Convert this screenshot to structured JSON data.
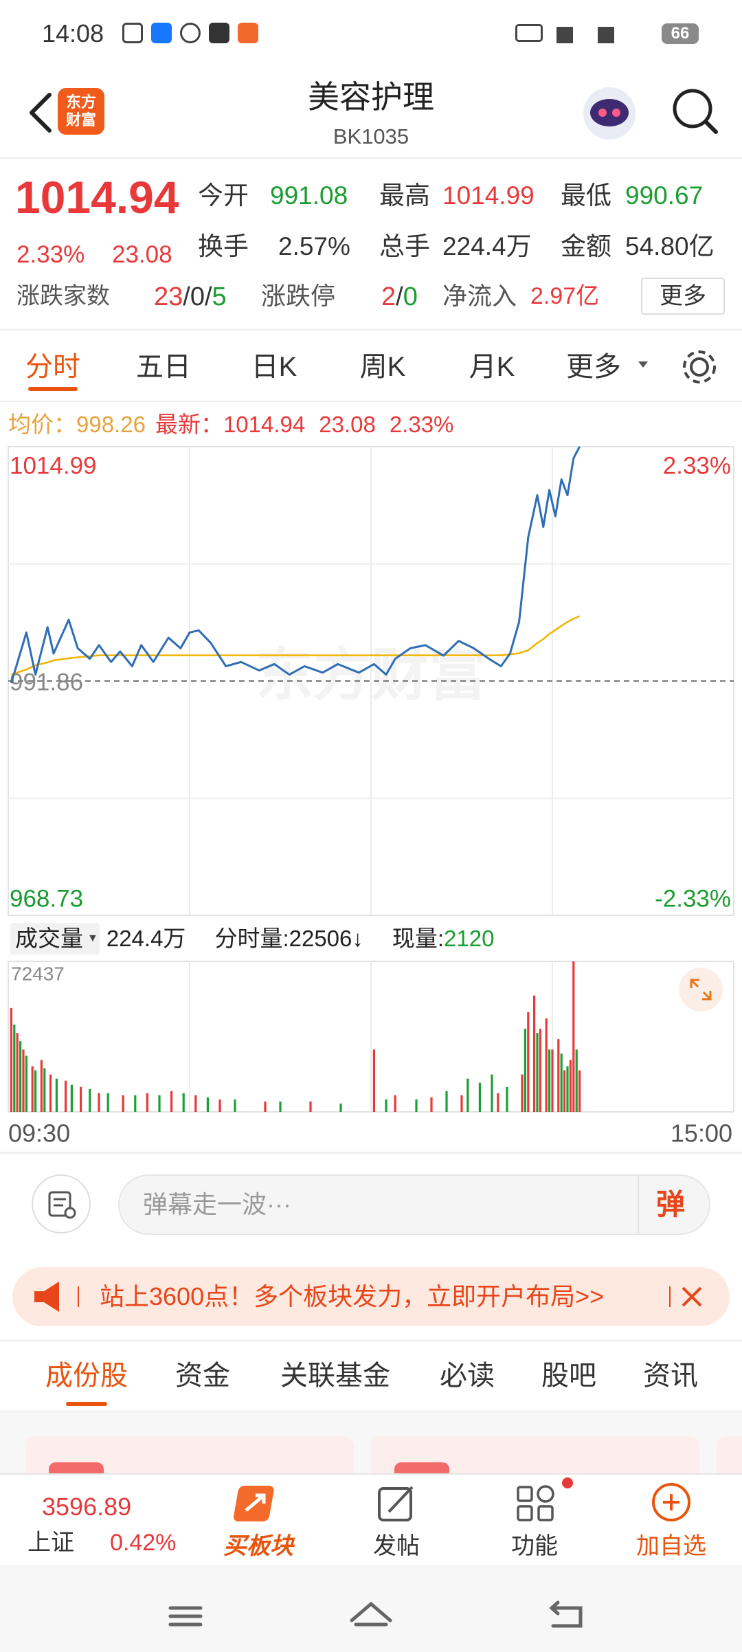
{
  "status_bar": {
    "time": "14:08",
    "battery": "66"
  },
  "header": {
    "logo": [
      "东方",
      "财富"
    ],
    "title": "美容护理",
    "code": "BK1035"
  },
  "quote": {
    "price": "1014.94",
    "change_pct": "2.33%",
    "change": "23.08",
    "stats": [
      [
        {
          "label": "今开",
          "value": "991.08"
        },
        {
          "label": "最高",
          "value": "1014.99"
        },
        {
          "label": "最低",
          "value": "990.67"
        }
      ],
      [
        {
          "label": "换手",
          "value": "2.57%"
        },
        {
          "label": "总手",
          "value": "224.4万"
        },
        {
          "label": "金额",
          "value": "54.80亿"
        }
      ]
    ],
    "advance_decline": {
      "label": "涨跌家数",
      "parts": [
        "23",
        "/",
        "0",
        "/",
        "5"
      ]
    },
    "limit": {
      "label": "涨跌停",
      "parts": [
        "2",
        "/",
        "0"
      ]
    },
    "net_inflow": {
      "label": "净流入",
      "value": "2.97亿"
    },
    "more": "更多"
  },
  "tabs": {
    "items": [
      "分时",
      "五日",
      "日K",
      "周K",
      "月K",
      "更多"
    ],
    "active": 0
  },
  "info": {
    "avg_label": "均价：",
    "avg": "998.26",
    "latest_label": "最新：",
    "latest": "1014.94",
    "change": "23.08",
    "change_pct": "2.33%"
  },
  "watermark": "东方财富",
  "volume_header": {
    "label": "成交量",
    "total": "224.4万",
    "minute_label": "分时量:",
    "minute_value": "22506",
    "arrow": "↓",
    "current_label": "现量:",
    "current_value": "2120"
  },
  "chart_data": [
    {
      "type": "line",
      "xlim": [
        0,
        240
      ],
      "ylim": [
        968.73,
        1014.99
      ],
      "yticks": [
        1014.99,
        991.86,
        968.73
      ],
      "y2lim": [
        -2.33,
        2.33
      ],
      "y2ticks": [
        {
          "value": 2.33,
          "label": "2.33%"
        },
        {
          "value": -2.33,
          "label": "-2.33%"
        }
      ],
      "x": [
        1,
        6,
        9,
        13,
        15,
        20,
        23,
        27,
        30,
        34,
        37,
        41,
        44,
        48,
        53,
        57,
        60,
        63,
        67,
        72,
        77,
        83,
        88,
        93,
        98,
        104,
        109,
        116,
        121,
        125,
        128,
        133,
        138,
        144,
        149,
        154,
        159,
        163,
        166,
        169,
        172,
        175,
        177,
        179,
        181,
        183,
        185,
        187,
        189
      ],
      "series": [
        {
          "color": "#2f6db5",
          "values": [
            991.65,
            996.65,
            992.49,
            997.17,
            994.57,
            997.9,
            995.09,
            994.05,
            995.4,
            993.74,
            994.78,
            993.32,
            995.4,
            993.74,
            996.13,
            995.09,
            996.65,
            996.86,
            995.61,
            993.32,
            993.74,
            992.9,
            993.53,
            992.49,
            993.32,
            992.69,
            993.53,
            992.69,
            993.53,
            992.49,
            994.05,
            995.09,
            995.4,
            994.36,
            995.82,
            995.09,
            994.05,
            993.32,
            994.57,
            997.7,
            1006.03,
            1010.2,
            1007.07,
            1010.72,
            1008.12,
            1011.76,
            1010.2,
            1013.85,
            1014.99
          ]
        },
        {
          "color": "#f0b400",
          "values": [
            992.5,
            993.0,
            993.4,
            993.7,
            993.9,
            994.1,
            994.2,
            994.3,
            994.4,
            994.4,
            994.4,
            994.4,
            994.4,
            994.4,
            994.4,
            994.4,
            994.4,
            994.4,
            994.4,
            994.4,
            994.4,
            994.4,
            994.4,
            994.4,
            994.4,
            994.4,
            994.4,
            994.4,
            994.4,
            994.4,
            994.4,
            994.4,
            994.4,
            994.4,
            994.4,
            994.4,
            994.4,
            994.4,
            994.5,
            994.6,
            994.9,
            995.6,
            996.0,
            996.5,
            996.9,
            997.3,
            997.7,
            998.0,
            998.26
          ]
        }
      ]
    },
    {
      "type": "bar",
      "xlim": [
        0,
        240
      ],
      "ylim": [
        0,
        72437
      ],
      "yticks": [
        72437
      ],
      "xticks": [
        {
          "value": 0,
          "label": "09:30"
        },
        {
          "value": 240,
          "label": "15:00"
        }
      ],
      "series": [
        {
          "color": "#e8393a",
          "x": [
            1,
            3,
            5,
            8,
            11,
            14,
            19,
            24,
            30,
            38,
            46,
            54,
            62,
            70,
            85,
            100,
            121,
            128,
            140,
            150,
            162,
            170,
            172,
            174,
            176,
            178,
            180,
            182,
            184,
            186,
            187,
            189
          ],
          "values": [
            50000,
            38000,
            30000,
            22000,
            25000,
            18000,
            15000,
            12000,
            9000,
            8000,
            9000,
            10000,
            8000,
            6000,
            5000,
            5000,
            30000,
            8000,
            7000,
            8000,
            9000,
            18000,
            48000,
            56000,
            40000,
            45000,
            30000,
            35000,
            20000,
            25000,
            72437,
            20000
          ]
        },
        {
          "color": "#1aa035",
          "x": [
            2,
            4,
            6,
            9,
            12,
            16,
            21,
            27,
            33,
            42,
            50,
            58,
            66,
            75,
            90,
            110,
            125,
            135,
            145,
            152,
            156,
            160,
            165,
            171,
            175,
            179,
            183,
            185,
            188
          ],
          "values": [
            42000,
            34000,
            27000,
            20000,
            21000,
            16000,
            13000,
            11000,
            9000,
            8000,
            8000,
            9000,
            7000,
            6000,
            5000,
            4000,
            6000,
            6000,
            10000,
            16000,
            14000,
            18000,
            12000,
            40000,
            38000,
            30000,
            28000,
            22000,
            30000
          ]
        }
      ]
    }
  ],
  "comment": {
    "placeholder": "弹幕走一波···",
    "button": "弹"
  },
  "banner": {
    "text": "站上3600点！多个板块发力，立即开户布局>>"
  },
  "section_tabs": {
    "items": [
      "成份股",
      "资金",
      "关联基金",
      "必读",
      "股吧",
      "资讯"
    ],
    "active": 0
  },
  "bottom_nav": {
    "index_value": "3596.89",
    "index_name": "上证",
    "index_change": "0.42%",
    "items": [
      "买板块",
      "发帖",
      "功能",
      "加自选"
    ]
  }
}
